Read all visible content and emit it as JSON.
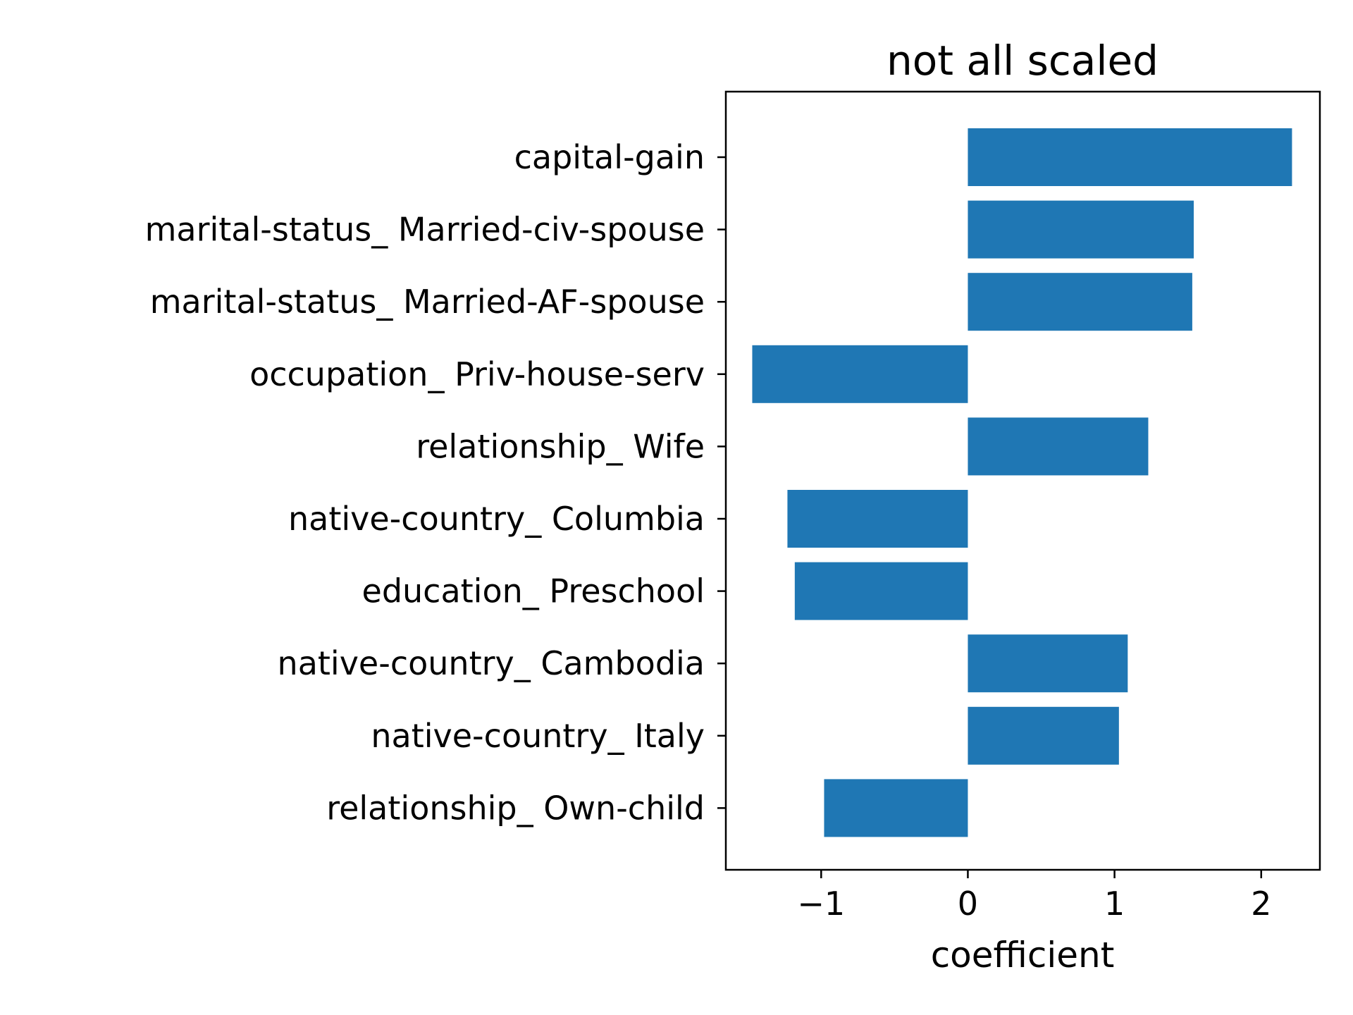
{
  "chart_data": {
    "type": "bar",
    "orientation": "horizontal",
    "title": "not all scaled",
    "xlabel": "coefficient",
    "ylabel": "",
    "categories": [
      "capital-gain",
      "marital-status_ Married-civ-spouse",
      "marital-status_ Married-AF-spouse",
      "occupation_ Priv-house-serv",
      "relationship_ Wife",
      "native-country_ Columbia",
      "education_ Preschool",
      "native-country_ Cambodia",
      "native-country_ Italy",
      "relationship_ Own-child"
    ],
    "values": [
      2.21,
      1.54,
      1.53,
      -1.47,
      1.23,
      -1.23,
      -1.18,
      1.09,
      1.03,
      -0.98
    ],
    "xlim": [
      -1.65,
      2.4
    ],
    "xticks": [
      -1,
      0,
      1,
      2
    ],
    "xtick_labels": [
      "−1",
      "0",
      "1",
      "2"
    ],
    "bar_color": "#1f77b4",
    "grid": false,
    "legend": "none"
  }
}
